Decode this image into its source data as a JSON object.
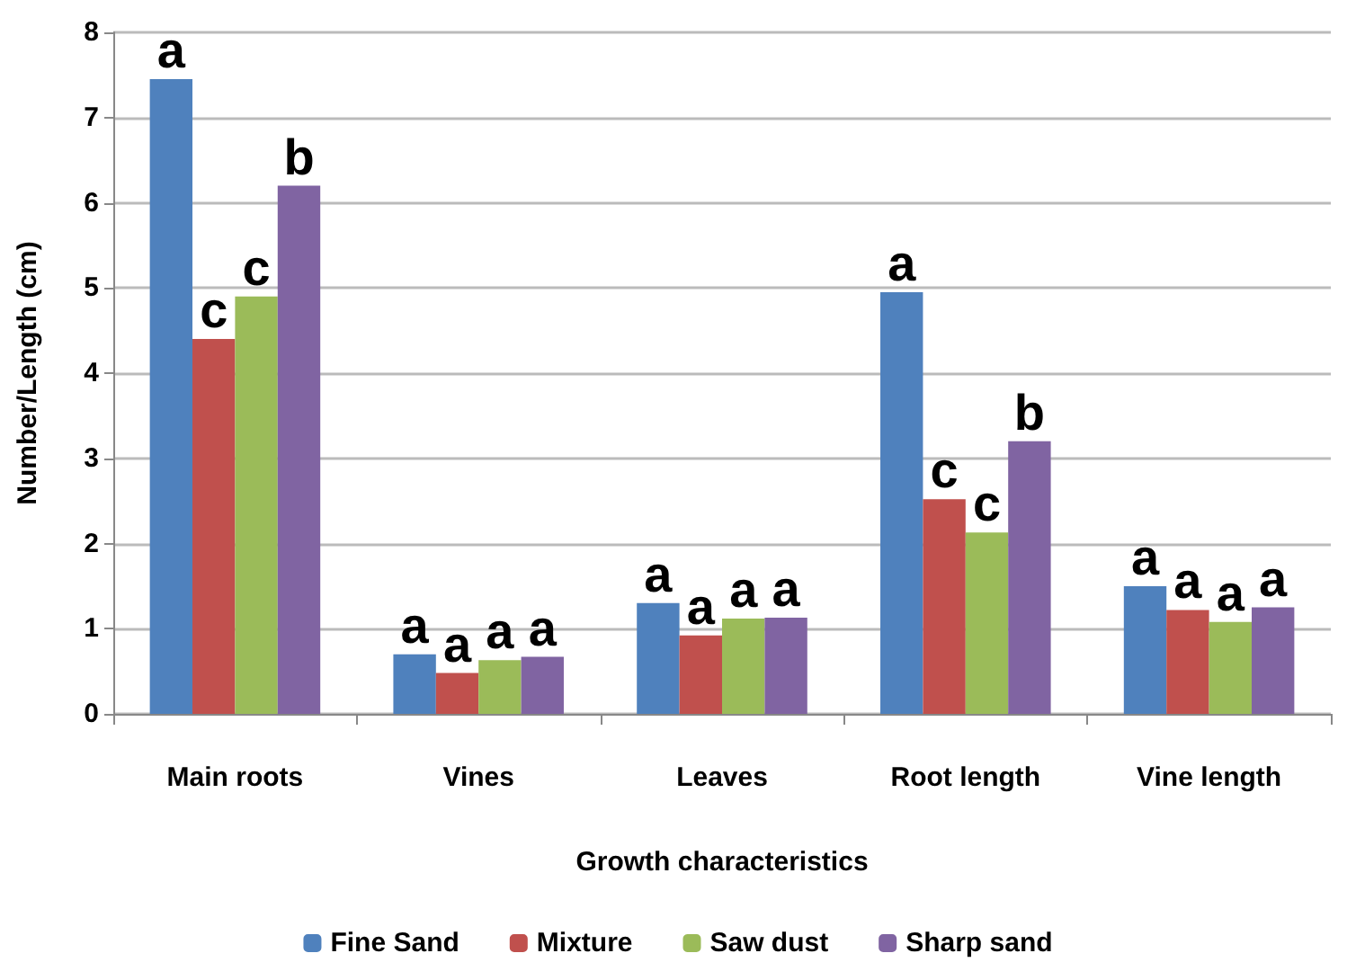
{
  "chart_data": {
    "type": "bar",
    "xlabel": "Growth characteristics",
    "ylabel": "Number/Length (cm)",
    "categories": [
      "Main roots",
      "Vines",
      "Leaves",
      "Root length",
      "Vine length"
    ],
    "series": [
      {
        "name": "Fine Sand",
        "color": "#4f81bd",
        "values": [
          7.45,
          0.7,
          1.3,
          4.95,
          1.5
        ],
        "value_labels": [
          "a",
          "a",
          "a",
          "a",
          "a"
        ]
      },
      {
        "name": "Mixture",
        "color": "#c0504d",
        "values": [
          4.4,
          0.48,
          0.92,
          2.52,
          1.22
        ],
        "value_labels": [
          "c",
          "a",
          "a",
          "c",
          "a"
        ]
      },
      {
        "name": "Saw dust",
        "color": "#9bbb59",
        "values": [
          4.9,
          0.63,
          1.12,
          2.13,
          1.08
        ],
        "value_labels": [
          "c",
          "a",
          "a",
          "c",
          "a"
        ]
      },
      {
        "name": "Sharp sand",
        "color": "#8064a2",
        "values": [
          6.2,
          0.67,
          1.13,
          3.2,
          1.25
        ],
        "value_labels": [
          "b",
          "a",
          "a",
          "b",
          "a"
        ]
      }
    ],
    "ylim": [
      0,
      8
    ],
    "yticks": [
      0,
      1,
      2,
      3,
      4,
      5,
      6,
      7,
      8
    ],
    "grid": "y",
    "legend": "bottom"
  }
}
